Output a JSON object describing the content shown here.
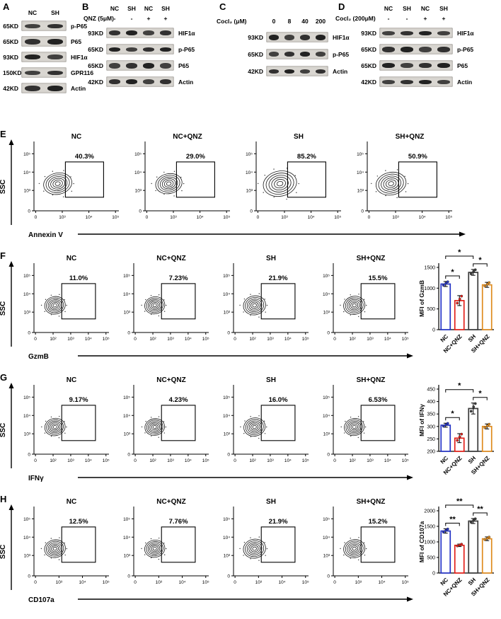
{
  "blot_panels": [
    {
      "id": "A",
      "lane_labels": [
        "NC",
        "SH"
      ],
      "treatment": null,
      "rows": [
        {
          "marker": "65KD",
          "protein": "p-P65"
        },
        {
          "marker": "65KD",
          "protein": "P65"
        },
        {
          "marker": "93KD",
          "protein": "HIF1α"
        },
        {
          "marker": "150KD",
          "protein": "GPR116"
        },
        {
          "marker": "42KD",
          "protein": "Actin"
        }
      ]
    },
    {
      "id": "B",
      "lane_labels": [
        "NC",
        "SH",
        "NC",
        "SH"
      ],
      "treatment": {
        "label": "QNZ (5μM)",
        "values": [
          "-",
          "-",
          "+",
          "+"
        ]
      },
      "rows": [
        {
          "marker": "93KD",
          "protein": "HIF1α"
        },
        {
          "marker": "65KD",
          "protein": "p-P65"
        },
        {
          "marker": "65KD",
          "protein": "P65"
        },
        {
          "marker": "42KD",
          "protein": "Actin"
        }
      ]
    },
    {
      "id": "C",
      "lane_labels": null,
      "treatment": {
        "label": "Cocl₂ (μM)",
        "values": [
          "0",
          "8",
          "40",
          "200"
        ]
      },
      "rows": [
        {
          "marker": "93KD",
          "protein": "HIF1α"
        },
        {
          "marker": "65KD",
          "protein": "p-P65"
        },
        {
          "marker": "42KD",
          "protein": "Actin"
        }
      ]
    },
    {
      "id": "D",
      "lane_labels": [
        "NC",
        "SH",
        "NC",
        "SH"
      ],
      "treatment": {
        "label": "Cocl₂ (200μM)",
        "values": [
          "-",
          "-",
          "+",
          "+"
        ]
      },
      "rows": [
        {
          "marker": "93KD",
          "protein": "HIF1α"
        },
        {
          "marker": "65KD",
          "protein": "p-P65"
        },
        {
          "marker": "65KD",
          "protein": "P65"
        },
        {
          "marker": "42KD",
          "protein": "Actin"
        }
      ]
    }
  ],
  "flow_panels": [
    {
      "id": "E",
      "y_label": "SSC",
      "x_label": "Annexin V",
      "y_ticks": [
        "0",
        "10³",
        "10⁴",
        "10⁵"
      ],
      "x_ticks": [
        "0",
        "10³",
        "10⁴",
        "10⁵"
      ],
      "plots": [
        {
          "title": "NC",
          "percent": "40.3%"
        },
        {
          "title": "NC+QNZ",
          "percent": "29.0%"
        },
        {
          "title": "SH",
          "percent": "85.2%"
        },
        {
          "title": "SH+QNZ",
          "percent": "50.9%"
        }
      ]
    },
    {
      "id": "F",
      "y_label": "SSC",
      "x_label": "GzmB",
      "y_ticks": [
        "0",
        "10³",
        "10⁴",
        "10⁵"
      ],
      "x_ticks": [
        "0",
        "10²",
        "10³",
        "10⁴",
        "10⁵"
      ],
      "plots": [
        {
          "title": "NC",
          "percent": "11.0%"
        },
        {
          "title": "NC+QNZ",
          "percent": "7.23%"
        },
        {
          "title": "SH",
          "percent": "21.9%"
        },
        {
          "title": "SH+QNZ",
          "percent": "15.5%"
        }
      ]
    },
    {
      "id": "G",
      "y_label": "SSC",
      "x_label": "IFNγ",
      "y_ticks": [
        "0",
        "10³",
        "10⁴",
        "10⁵"
      ],
      "x_ticks": [
        "0",
        "10²",
        "10³",
        "10⁴",
        "10⁵"
      ],
      "plots": [
        {
          "title": "NC",
          "percent": "9.17%"
        },
        {
          "title": "NC+QNZ",
          "percent": "4.23%"
        },
        {
          "title": "SH",
          "percent": "16.0%"
        },
        {
          "title": "SH+QNZ",
          "percent": "6.53%"
        }
      ]
    },
    {
      "id": "H",
      "y_label": "SSC",
      "x_label": "CD107a",
      "y_ticks": [
        "0",
        "10³",
        "10⁴",
        "10⁵"
      ],
      "x_ticks": [
        "0",
        "10³",
        "10⁴",
        "10⁵"
      ],
      "plots": [
        {
          "title": "NC",
          "percent": "12.5%"
        },
        {
          "title": "NC+QNZ",
          "percent": "7.76%"
        },
        {
          "title": "SH",
          "percent": "21.9%"
        },
        {
          "title": "SH+QNZ",
          "percent": "15.2%"
        }
      ]
    }
  ],
  "chart_data": [
    {
      "type": "bar",
      "panel": "F",
      "ylabel": "MFI of GzmB",
      "categories": [
        "NC",
        "NC+QNZ",
        "SH",
        "SH+QNZ"
      ],
      "values": [
        1100,
        700,
        1380,
        1080
      ],
      "errors": [
        60,
        120,
        70,
        60
      ],
      "ylim": [
        0,
        1500
      ],
      "yticks": [
        0,
        500,
        1000,
        1500
      ],
      "bar_colors": [
        "#2433c5",
        "#e32019",
        "#3a3a3a",
        "#df8b1e"
      ],
      "significance": [
        {
          "from": 0,
          "to": 1,
          "label": "*"
        },
        {
          "from": 0,
          "to": 2,
          "label": "*"
        },
        {
          "from": 2,
          "to": 3,
          "label": "*"
        }
      ]
    },
    {
      "type": "bar",
      "panel": "G",
      "ylabel": "MFI of IFNγ",
      "categories": [
        "NC",
        "NC+QNZ",
        "SH",
        "SH+QNZ"
      ],
      "values": [
        305,
        253,
        372,
        300
      ],
      "errors": [
        8,
        18,
        22,
        10
      ],
      "ylim": [
        200,
        450
      ],
      "yticks": [
        200,
        250,
        300,
        350,
        400,
        450
      ],
      "bar_colors": [
        "#2433c5",
        "#e32019",
        "#3a3a3a",
        "#df8b1e"
      ],
      "significance": [
        {
          "from": 0,
          "to": 1,
          "label": "*"
        },
        {
          "from": 0,
          "to": 2,
          "label": "*"
        },
        {
          "from": 2,
          "to": 3,
          "label": "*"
        }
      ]
    },
    {
      "type": "bar",
      "panel": "H",
      "ylabel": "MFI of CD107a",
      "categories": [
        "NC",
        "NC+QNZ",
        "SH",
        "SH+QNZ"
      ],
      "values": [
        1350,
        890,
        1670,
        1100
      ],
      "errors": [
        70,
        40,
        80,
        60
      ],
      "ylim": [
        0,
        2000
      ],
      "yticks": [
        0,
        500,
        1000,
        1500,
        2000
      ],
      "bar_colors": [
        "#2433c5",
        "#e32019",
        "#3a3a3a",
        "#df8b1e"
      ],
      "significance": [
        {
          "from": 0,
          "to": 1,
          "label": "**"
        },
        {
          "from": 0,
          "to": 2,
          "label": "**"
        },
        {
          "from": 2,
          "to": 3,
          "label": "**"
        }
      ]
    }
  ]
}
